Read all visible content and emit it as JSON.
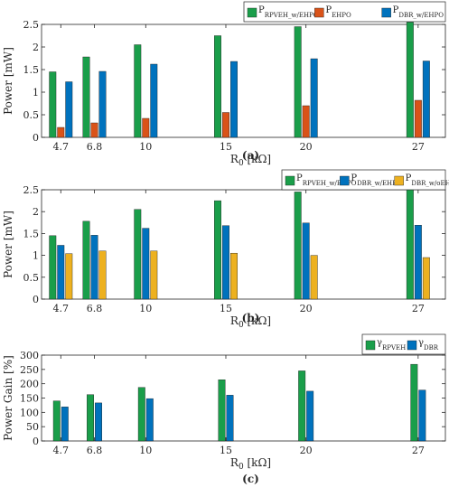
{
  "chart_data": [
    {
      "type": "bar",
      "panel_label": "(a)",
      "categories": [
        "4.7",
        "6.8",
        "10",
        "15",
        "20",
        "27"
      ],
      "x": [
        4.7,
        6.8,
        10,
        15,
        20,
        27
      ],
      "xlabel": "R",
      "xlabel_sub": "0",
      "xlabel_unit": " [kΩ]",
      "ylabel": "Power [mW]",
      "ylim": [
        0,
        2.5
      ],
      "yticks": [
        "0",
        "0.5",
        "1",
        "1.5",
        "2",
        "2.5"
      ],
      "grid": false,
      "legend_placement": "top-right",
      "series": [
        {
          "name": "P",
          "name_sub": "RPVEH_w/EHPO",
          "color": "#1a9e4a",
          "values": [
            1.45,
            1.78,
            2.05,
            2.25,
            2.45,
            2.55
          ]
        },
        {
          "name": "P",
          "name_sub": "EHPO",
          "color": "#d95319",
          "values": [
            0.22,
            0.32,
            0.42,
            0.55,
            0.7,
            0.82
          ]
        },
        {
          "name": "P",
          "name_sub": "DBR_w/EHPO",
          "color": "#0072bd",
          "values": [
            1.23,
            1.46,
            1.62,
            1.68,
            1.74,
            1.69
          ]
        }
      ]
    },
    {
      "type": "bar",
      "panel_label": "(b)",
      "categories": [
        "4.7",
        "6.8",
        "10",
        "15",
        "20",
        "27"
      ],
      "x": [
        4.7,
        6.8,
        10,
        15,
        20,
        27
      ],
      "xlabel": "R",
      "xlabel_sub": "0",
      "xlabel_unit": " [kΩ]",
      "ylabel": "Power [mW]",
      "ylim": [
        0,
        2.5
      ],
      "yticks": [
        "0",
        "0.5",
        "1",
        "1.5",
        "2",
        "2.5"
      ],
      "grid": false,
      "legend_placement": "top-right",
      "series": [
        {
          "name": "P",
          "name_sub": "RPVEH_w/EHPO",
          "color": "#1a9e4a",
          "values": [
            1.45,
            1.78,
            2.05,
            2.25,
            2.45,
            2.55
          ]
        },
        {
          "name": "P",
          "name_sub": "DBR_w/EHPO",
          "color": "#0072bd",
          "values": [
            1.23,
            1.46,
            1.62,
            1.68,
            1.74,
            1.69
          ]
        },
        {
          "name": "P",
          "name_sub": "DBR_w/oEHPO",
          "color": "#edb120",
          "values": [
            1.04,
            1.1,
            1.1,
            1.05,
            1.0,
            0.95
          ]
        }
      ]
    },
    {
      "type": "bar",
      "panel_label": "(c)",
      "categories": [
        "4.7",
        "6.8",
        "10",
        "15",
        "20",
        "27"
      ],
      "x": [
        4.7,
        6.8,
        10,
        15,
        20,
        27
      ],
      "xlabel": "R",
      "xlabel_sub": "0",
      "xlabel_unit": " [kΩ]",
      "ylabel": "Power Gain [%]",
      "ylim": [
        0,
        300
      ],
      "yticks": [
        "0",
        "50",
        "100",
        "150",
        "200",
        "250",
        "300"
      ],
      "grid": false,
      "legend_placement": "top-right",
      "series": [
        {
          "name": "γ",
          "name_sub": "RPVEH",
          "color": "#1a9e4a",
          "values": [
            140,
            162,
            187,
            214,
            245,
            268
          ]
        },
        {
          "name": "γ",
          "name_sub": "DBR",
          "color": "#0072bd",
          "values": [
            119,
            133,
            148,
            160,
            174,
            178
          ]
        }
      ]
    }
  ]
}
